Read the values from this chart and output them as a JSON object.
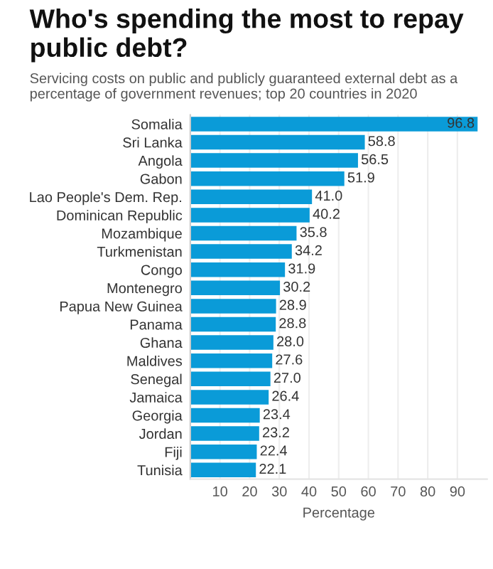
{
  "chart_data": {
    "type": "bar",
    "orientation": "horizontal",
    "title": "Who's spending the most to repay public debt?",
    "subtitle": "Servicing costs on public and publicly guaranteed external debt as a percentage of government revenues; top 20 countries in 2020",
    "xlabel": "Percentage",
    "categories": [
      "Somalia",
      "Sri Lanka",
      "Angola",
      "Gabon",
      "Lao People's Dem. Rep.",
      "Dominican Republic",
      "Mozambique",
      "Turkmenistan",
      "Congo",
      "Montenegro",
      "Papua New Guinea",
      "Panama",
      "Ghana",
      "Maldives",
      "Senegal",
      "Jamaica",
      "Georgia",
      "Jordan",
      "Fiji",
      "Tunisia"
    ],
    "values": [
      96.8,
      58.8,
      56.5,
      51.9,
      41.0,
      40.2,
      35.8,
      34.2,
      31.9,
      30.2,
      28.9,
      28.8,
      28.0,
      27.6,
      27.0,
      26.4,
      23.4,
      23.2,
      22.4,
      22.1
    ],
    "value_labels": [
      "96.8",
      "58.8",
      "56.5",
      "51.9",
      "41.0",
      "40.2",
      "35.8",
      "34.2",
      "31.9",
      "30.2",
      "28.9",
      "28.8",
      "28.0",
      "27.6",
      "27.0",
      "26.4",
      "23.4",
      "23.2",
      "22.4",
      "22.1"
    ],
    "color": "#0a9bd8",
    "xlim": [
      0,
      100
    ],
    "xticks": [
      10,
      20,
      30,
      40,
      50,
      60,
      70,
      80,
      90
    ],
    "grid": "x"
  }
}
